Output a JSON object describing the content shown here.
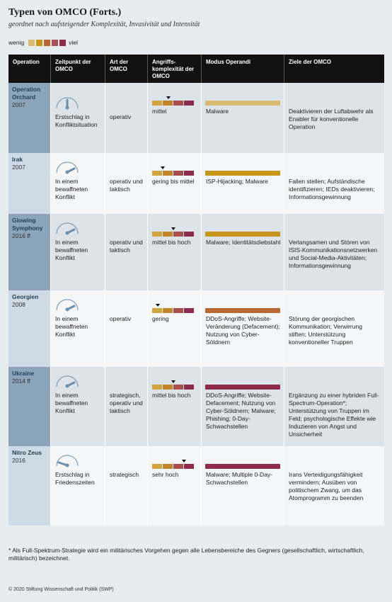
{
  "title": "Typen von OMCO (Forts.)",
  "subtitle": "geordnet nach aufsteigender Komplexität, Invasivität und Intensität",
  "legend": {
    "low": "wenig",
    "high": "viel",
    "colors": [
      "#d8bb6e",
      "#c69519",
      "#b96733",
      "#a85055",
      "#8d2b4b"
    ]
  },
  "headers": {
    "operation": "Operation",
    "time": "Zeitpunkt der OMCO",
    "type": "Art der OMCO",
    "complexity": "Angriffs-komplexität der OMCO",
    "modus": "Modus Operandi",
    "goals": "Ziele der OMCO"
  },
  "rows": [
    {
      "name": "Operation Orchard",
      "year": "2007",
      "time": "Erstschlag in Konfliktsituation",
      "type": "operativ",
      "complexity_label": "mittel",
      "complexity_level": 2,
      "modus": "Malware",
      "modus_color": "#d8bb6e",
      "goals": "Deaktivieren der Luftabwehr als Enabler für konventionelle Operation"
    },
    {
      "name": "Irak",
      "year": "2007",
      "time": "In einem bewaffneten Konflikt",
      "type": "operativ und taktisch",
      "complexity_label": "gering bis mittel",
      "complexity_level": 1.5,
      "modus": "ISP-Hijacking; Malware",
      "modus_color": "#c69519",
      "goals": "Fallen stellen; Aufständische identifizieren; IEDs deaktivieren; Informationsgewinnung"
    },
    {
      "name": "Glowing Symphony",
      "year": "2016 ff",
      "time": "In einem bewaffneten Konflikt",
      "type": "operativ und taktisch",
      "complexity_label": "mittel bis hoch",
      "complexity_level": 2.5,
      "modus": "Malware; Identitätsdiebstahl",
      "modus_color": "#c69519",
      "goals": "Verlangsamen und Stören von ISIS-Kommunikationsnetzwerken und Social-Media-Aktivitäten; Informationsgewinnung"
    },
    {
      "name": "Georgien",
      "year": "2008",
      "time": "In einem bewaffneten Konflikt",
      "type": "operativ",
      "complexity_label": "gering",
      "complexity_level": 1,
      "modus": "DDoS-Angriffe; Website-Veränderung (Defacement); Nutzung von Cyber-Söldnern",
      "modus_color": "#b96733",
      "goals": "Störung der georgischen Kommunikation; Verwirrung stiften; Unterstützung konventioneller Truppen"
    },
    {
      "name": "Ukraine",
      "year": "2014 ff",
      "time": "In einem bewaffneten Konflikt",
      "type": "strategisch, operativ und taktisch",
      "complexity_label": "mittel bis hoch",
      "complexity_level": 2.5,
      "modus": "DDoS-Angriffe; Website-Defacement; Nutzung von Cyber-Söldnern; Malware; Phishing; 0-Day-Schwachstellen",
      "modus_color": "#8d2b4b",
      "goals": "Ergänzung zu einer hybriden Full-Spectrum-Operation*; Unterstützung von Truppen im Feld; psychologische Effekte wie Induzieren von Angst und Unsicherheit"
    },
    {
      "name": "Nitro Zeus",
      "year": "2016",
      "time": "Erstschlag in Friedenszeiten",
      "type": "strategisch",
      "complexity_label": "sehr hoch",
      "complexity_level": 3.5,
      "modus": "Malware; Multiple 0-Day-Schwachstellen",
      "modus_color": "#8d2b4b",
      "goals": "Irans Verteidigungsfähigkeit vermindern; Ausüben von politischem Zwang, um das Atomprogramm zu beenden"
    }
  ],
  "footnote": "* Als Full-Spektrum-Strategie wird ein militärisches Vorgehen gegen alle Lebensbereiche des Gegners (gesellschaftlich, wirtschaftlich, militärisch) bezeichnet.",
  "copyright": "© 2020 Stiftung Wissenschaft und Politik (SWP)"
}
